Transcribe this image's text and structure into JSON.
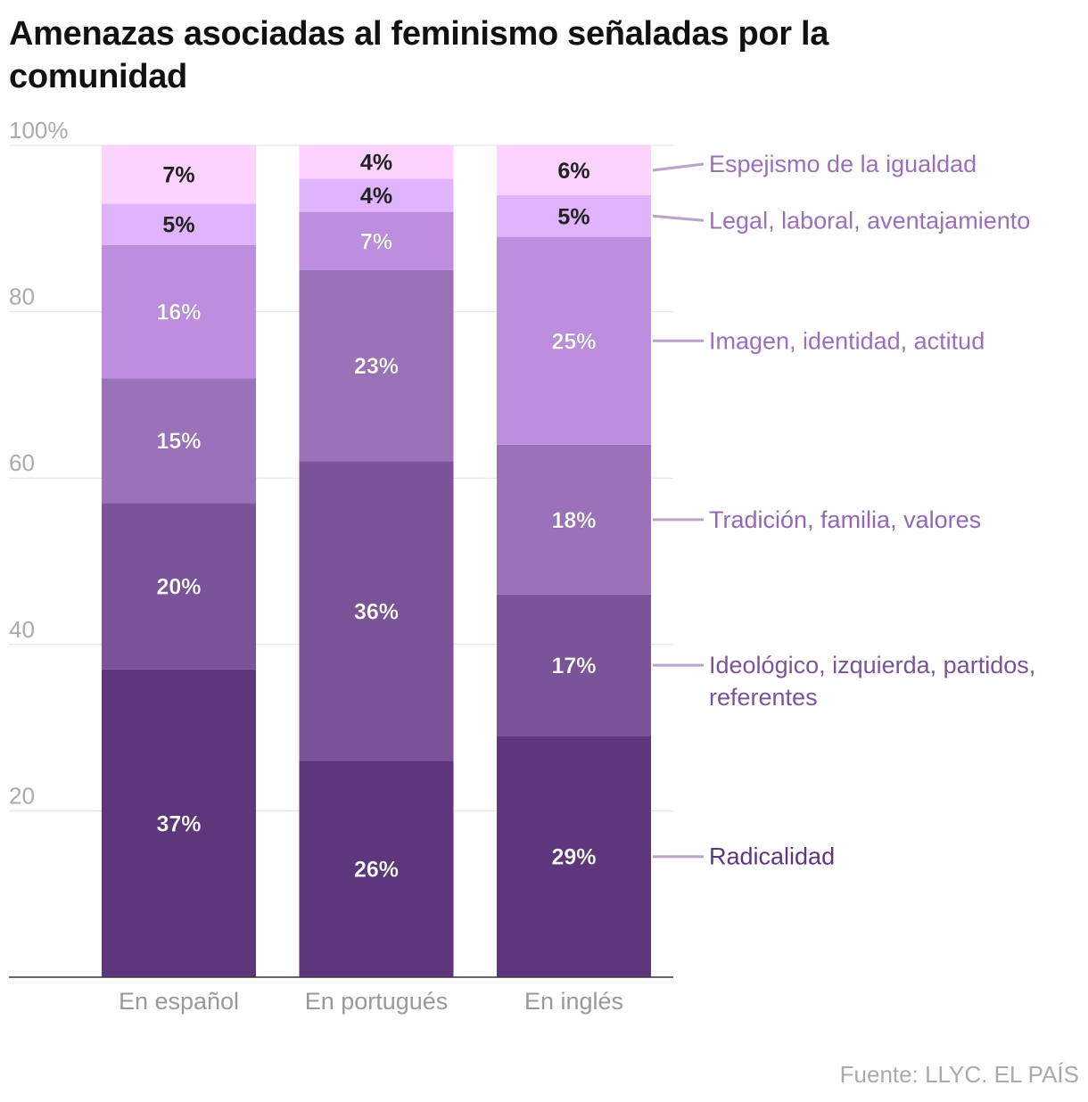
{
  "title": "Amenazas asociadas al feminismo señaladas por la comunidad",
  "source": "Fuente: LLYC. EL PAÍS",
  "chart_data": {
    "type": "bar",
    "stacked": true,
    "categories": [
      "En español",
      "En portugués",
      "En inglés"
    ],
    "ylim": [
      0,
      100
    ],
    "y_ticks": [
      {
        "value": 100,
        "label": "100%"
      },
      {
        "value": 80,
        "label": "80"
      },
      {
        "value": 60,
        "label": "60"
      },
      {
        "value": 40,
        "label": "40"
      },
      {
        "value": 20,
        "label": "20"
      }
    ],
    "grid": true,
    "legend": "right, direct labels",
    "series": [
      {
        "name": "Radicalidad",
        "values": [
          37,
          26,
          29
        ],
        "labels": [
          "37%",
          "26%",
          "29%"
        ],
        "color": "#5d367b",
        "text_color": "#5d367b",
        "label_text_color": "#ffffff"
      },
      {
        "name": "Ideológico, izquierda, partidos, referentes",
        "values": [
          20,
          36,
          17
        ],
        "labels": [
          "20%",
          "36%",
          "17%"
        ],
        "color": "#7b5398",
        "text_color": "#7b5398",
        "label_text_color": "#ffffff"
      },
      {
        "name": "Tradición, familia, valores",
        "values": [
          15,
          23,
          18
        ],
        "labels": [
          "15%",
          "23%",
          "18%"
        ],
        "color": "#9b72b9",
        "text_color": "#9467b3",
        "label_text_color": "#ffffff"
      },
      {
        "name": "Imagen, identidad, actitud",
        "values": [
          16,
          7,
          25
        ],
        "labels": [
          "16%",
          "7%",
          "25%"
        ],
        "color": "#bd8ee0",
        "text_color": "#9c6fbb",
        "label_text_color": "#ffffff"
      },
      {
        "name": "Legal, laboral, aventajamiento",
        "values": [
          5,
          4,
          5
        ],
        "labels": [
          "5%",
          "4%",
          "5%"
        ],
        "color": "#dfb4fc",
        "text_color": "#9c6fbb",
        "label_text_color": "#222222"
      },
      {
        "name": "Espejismo de la igualdad",
        "values": [
          7,
          4,
          6
        ],
        "labels": [
          "7%",
          "4%",
          "6%"
        ],
        "color": "#fcd2fe",
        "text_color": "#9c6fbb",
        "label_text_color": "#222222"
      }
    ],
    "colors": {
      "grid": "#e2e2e2",
      "axis": "#333333",
      "tick_text": "#aaaaaa",
      "category_text": "#999999",
      "leader": "#bba3cc"
    }
  }
}
